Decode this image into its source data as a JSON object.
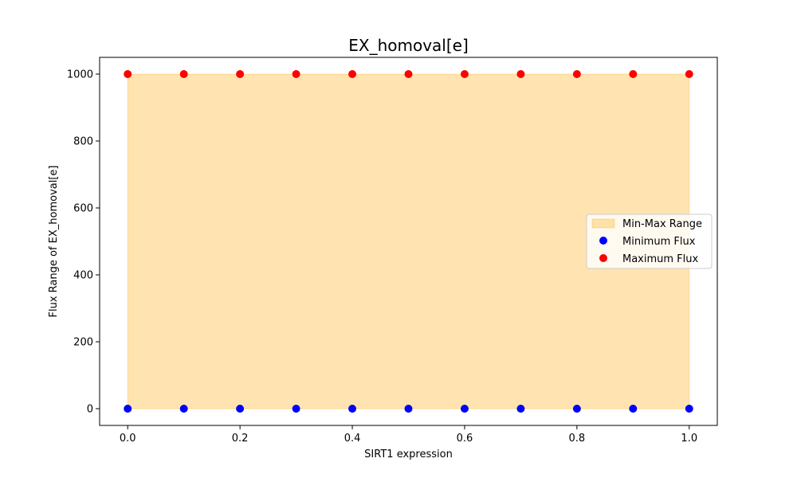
{
  "chart_data": {
    "type": "scatter",
    "title": "EX_homoval[e]",
    "xlabel": "SIRT1 expression",
    "ylabel": "Flux Range of EX_homoval[e]",
    "xlim": [
      -0.05,
      1.05
    ],
    "ylim": [
      -50,
      1050
    ],
    "xticks": [
      0.0,
      0.2,
      0.4,
      0.6,
      0.8,
      1.0
    ],
    "xtick_labels": [
      "0.0",
      "0.2",
      "0.4",
      "0.6",
      "0.8",
      "1.0"
    ],
    "yticks": [
      0,
      200,
      400,
      600,
      800,
      1000
    ],
    "ytick_labels": [
      "0",
      "200",
      "400",
      "600",
      "800",
      "1000"
    ],
    "grid": false,
    "legend_position": "center-right",
    "x": [
      0.0,
      0.1,
      0.2,
      0.3,
      0.4,
      0.5,
      0.6,
      0.7,
      0.8,
      0.9,
      1.0
    ],
    "series": [
      {
        "name": "Minimum Flux",
        "color": "#0000ff",
        "values": [
          0,
          0,
          0,
          0,
          0,
          0,
          0,
          0,
          0,
          0,
          0
        ]
      },
      {
        "name": "Maximum Flux",
        "color": "#ff0000",
        "values": [
          1000,
          1000,
          1000,
          1000,
          1000,
          1000,
          1000,
          1000,
          1000,
          1000,
          1000
        ]
      }
    ],
    "range_fill": {
      "name": "Min-Max Range",
      "color": "#ffa500",
      "opacity": 0.3
    }
  }
}
